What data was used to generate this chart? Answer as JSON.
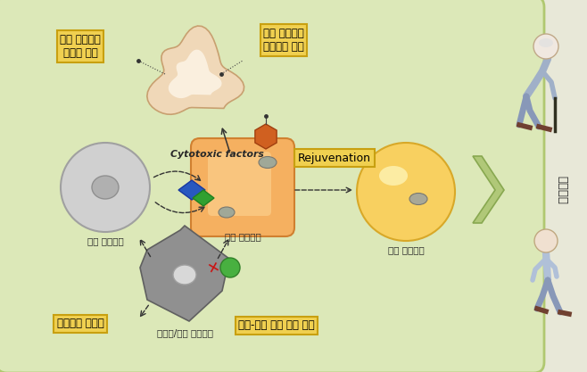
{
  "bg_color": "#e8e8d8",
  "main_panel_color": "#dce8b8",
  "main_panel_edge": "#b0c870",
  "label_box_color": "#f0d050",
  "label_box_edge": "#c8a010",
  "figsize": [
    6.58,
    4.17
  ],
  "dpi": 100,
  "labels": {
    "top_left": "노화 지방세포\n선택적 제거",
    "top_center": "노화 지방세포\n시그너처 발굴",
    "rejuvenation": "Rejuvenation",
    "cytotoxic": "Cytotoxic factors",
    "bottom_left": "면역세포 정상화",
    "bottom_center": "노화-면역 상호 작용 이해",
    "normal_immune": "정상 면역세포",
    "inactive_immune": "비활성/노화 면역세포",
    "aged_fat": "노화 지방세포",
    "normal_fat": "정상 지방세포",
    "healthy_aging": "건강노화"
  }
}
